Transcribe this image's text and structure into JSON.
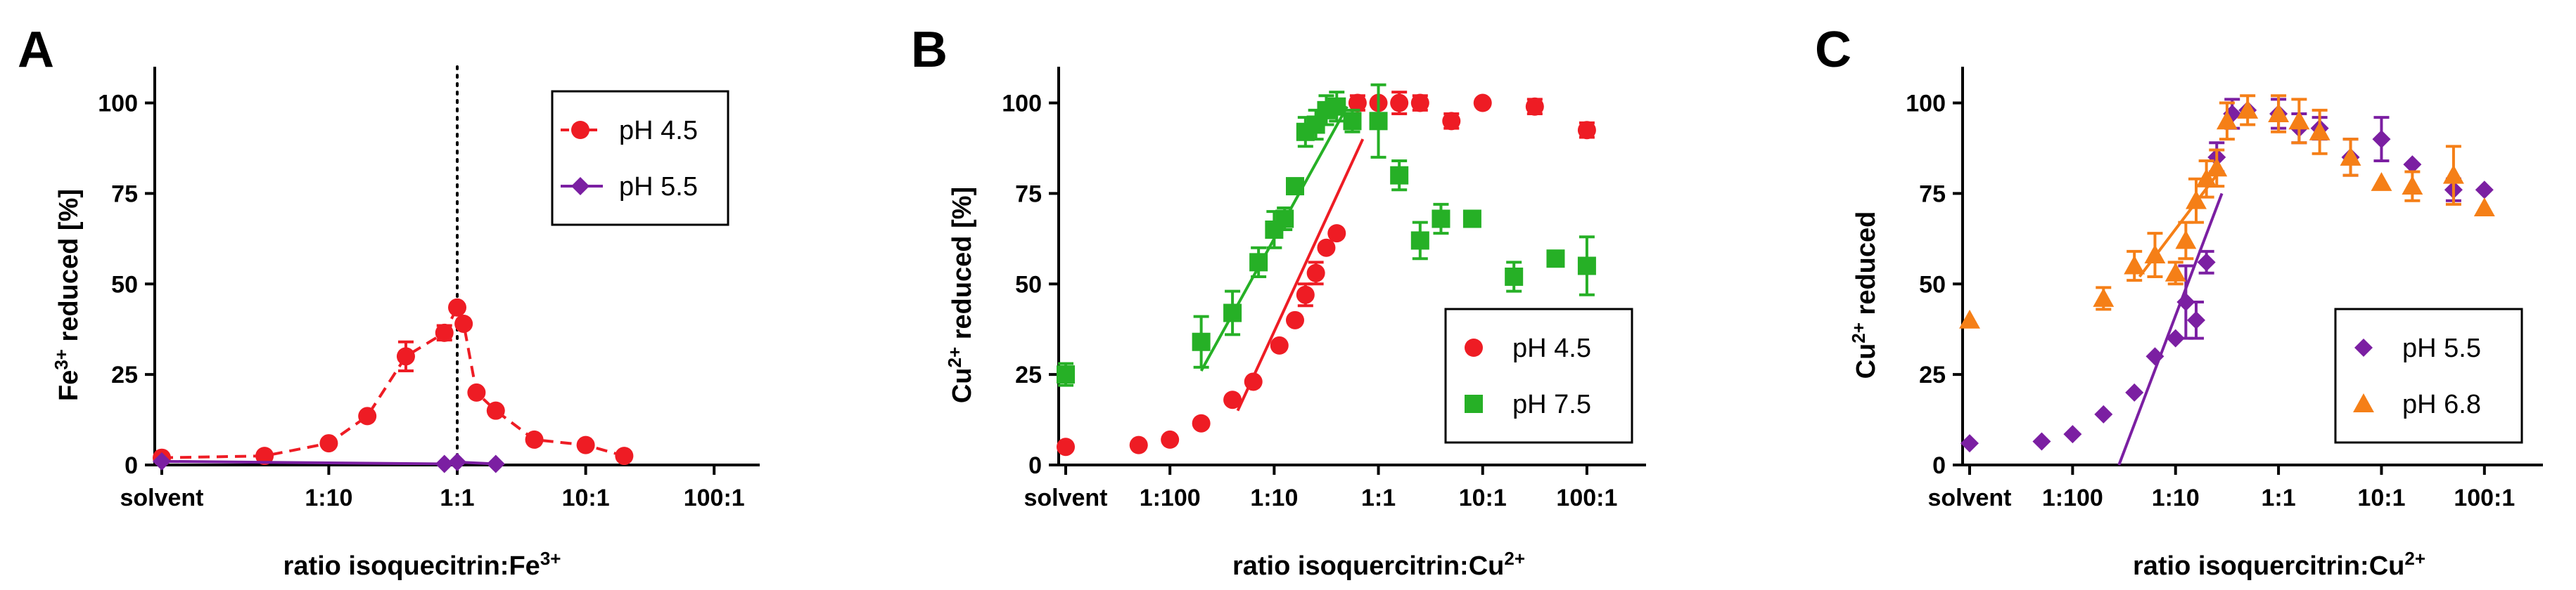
{
  "panels": [
    {
      "letter": "A",
      "xlabel_main": "ratio isoquecitrin:Fe",
      "xlabel_sup": "3+",
      "ylabel_pre": "Fe",
      "ylabel_sup": "3+",
      "ylabel_post": " reduced [%]"
    },
    {
      "letter": "B",
      "xlabel_main": "ratio isoquercitrin:Cu",
      "xlabel_sup": "2+",
      "ylabel_pre": "Cu",
      "ylabel_sup": "2+",
      "ylabel_post": " reduced [%]"
    },
    {
      "letter": "C",
      "xlabel_main": "ratio isoquercitrin:Cu",
      "xlabel_sup": "2+",
      "ylabel_pre": "Cu",
      "ylabel_sup": "2+",
      "ylabel_post": " reduced"
    }
  ],
  "chart_data": [
    {
      "type": "line",
      "x_scale": "log10",
      "x_ticks": [
        {
          "label": "solvent",
          "value": -2.3
        },
        {
          "label": "1:10",
          "value": -1
        },
        {
          "label": "1:1",
          "value": 0
        },
        {
          "label": "10:1",
          "value": 1
        },
        {
          "label": "100:1",
          "value": 2
        }
      ],
      "y_ticks": [
        0,
        25,
        50,
        75,
        100
      ],
      "ylim": [
        0,
        110
      ],
      "xlim": [
        -2.3,
        2.3
      ],
      "vertical_reference_line": {
        "x": 0,
        "style": "dotted"
      },
      "legend_position": "top-right",
      "series": [
        {
          "name": "pH 4.5",
          "color": "#ee1c24",
          "marker": "circle",
          "line": "dashed",
          "points": [
            {
              "x": -2.3,
              "y": 2
            },
            {
              "x": -1.5,
              "y": 2.5
            },
            {
              "x": -1.0,
              "y": 6
            },
            {
              "x": -0.7,
              "y": 13.5
            },
            {
              "x": -0.4,
              "y": 30,
              "err": 4
            },
            {
              "x": -0.1,
              "y": 36.5,
              "err": 2
            },
            {
              "x": 0.0,
              "y": 43.5
            },
            {
              "x": 0.05,
              "y": 39
            },
            {
              "x": 0.15,
              "y": 20
            },
            {
              "x": 0.3,
              "y": 15
            },
            {
              "x": 0.6,
              "y": 7
            },
            {
              "x": 1.0,
              "y": 5.5
            },
            {
              "x": 1.3,
              "y": 2.5
            }
          ]
        },
        {
          "name": "pH 5.5",
          "color": "#7b1fa2",
          "marker": "diamond",
          "line": "solid",
          "points": [
            {
              "x": -2.3,
              "y": 1
            },
            {
              "x": -0.1,
              "y": 0.3
            },
            {
              "x": 0.0,
              "y": 0.8
            },
            {
              "x": 0.3,
              "y": 0.3
            }
          ]
        }
      ]
    },
    {
      "type": "scatter",
      "x_scale": "log10",
      "x_ticks": [
        {
          "label": "solvent",
          "value": -3
        },
        {
          "label": "1:100",
          "value": -2
        },
        {
          "label": "1:10",
          "value": -1
        },
        {
          "label": "1:1",
          "value": 0
        },
        {
          "label": "10:1",
          "value": 1
        },
        {
          "label": "100:1",
          "value": 2
        }
      ],
      "y_ticks": [
        0,
        25,
        50,
        75,
        100
      ],
      "ylim": [
        0,
        110
      ],
      "xlim": [
        -3,
        2.5
      ],
      "legend_position": "bottom-right",
      "series": [
        {
          "name": "pH 4.5",
          "color": "#ee1c24",
          "marker": "circle",
          "points": [
            {
              "x": -3,
              "y": 5
            },
            {
              "x": -2.3,
              "y": 5.5
            },
            {
              "x": -2.0,
              "y": 7
            },
            {
              "x": -1.7,
              "y": 11.5
            },
            {
              "x": -1.4,
              "y": 18
            },
            {
              "x": -1.2,
              "y": 23
            },
            {
              "x": -0.95,
              "y": 33
            },
            {
              "x": -0.8,
              "y": 40
            },
            {
              "x": -0.7,
              "y": 47,
              "err": 3
            },
            {
              "x": -0.6,
              "y": 53,
              "err": 3
            },
            {
              "x": -0.5,
              "y": 60
            },
            {
              "x": -0.4,
              "y": 64
            },
            {
              "x": -0.2,
              "y": 100,
              "err": 2
            },
            {
              "x": 0.0,
              "y": 100
            },
            {
              "x": 0.2,
              "y": 100,
              "err": 3
            },
            {
              "x": 0.4,
              "y": 100,
              "err": 2
            },
            {
              "x": 0.7,
              "y": 95,
              "err": 2
            },
            {
              "x": 1.0,
              "y": 100
            },
            {
              "x": 1.5,
              "y": 99,
              "err": 2
            },
            {
              "x": 2.0,
              "y": 92.5,
              "err": 2
            }
          ],
          "fit_line": {
            "x1": -1.35,
            "y1": 15,
            "x2": -0.15,
            "y2": 90
          }
        },
        {
          "name": "pH 7.5",
          "color": "#26b026",
          "marker": "square",
          "points": [
            {
              "x": -3,
              "y": 25,
              "err": 3
            },
            {
              "x": -1.7,
              "y": 34,
              "err": 7
            },
            {
              "x": -1.4,
              "y": 42,
              "err": 6
            },
            {
              "x": -1.15,
              "y": 56,
              "err": 4
            },
            {
              "x": -1.0,
              "y": 65,
              "err": 5
            },
            {
              "x": -0.9,
              "y": 68,
              "err": 3
            },
            {
              "x": -0.8,
              "y": 77
            },
            {
              "x": -0.7,
              "y": 92,
              "err": 4
            },
            {
              "x": -0.6,
              "y": 94,
              "err": 4
            },
            {
              "x": -0.5,
              "y": 98,
              "err": 4
            },
            {
              "x": -0.4,
              "y": 99,
              "err": 4
            },
            {
              "x": -0.25,
              "y": 95,
              "err": 3
            },
            {
              "x": 0.0,
              "y": 95,
              "err": 10
            },
            {
              "x": 0.2,
              "y": 80,
              "err": 4
            },
            {
              "x": 0.4,
              "y": 62,
              "err": 5
            },
            {
              "x": 0.6,
              "y": 68,
              "err": 4
            },
            {
              "x": 0.9,
              "y": 68
            },
            {
              "x": 1.3,
              "y": 52,
              "err": 4
            },
            {
              "x": 1.7,
              "y": 57
            },
            {
              "x": 2.0,
              "y": 55,
              "err": 8
            }
          ],
          "fit_line": {
            "x1": -1.7,
            "y1": 26,
            "x2": -0.3,
            "y2": 99
          }
        }
      ]
    },
    {
      "type": "scatter",
      "x_scale": "log10",
      "x_ticks": [
        {
          "label": "solvent",
          "value": -3
        },
        {
          "label": "1:100",
          "value": -2
        },
        {
          "label": "1:10",
          "value": -1
        },
        {
          "label": "1:1",
          "value": 0
        },
        {
          "label": "10:1",
          "value": 1
        },
        {
          "label": "100:1",
          "value": 2
        }
      ],
      "y_ticks": [
        0,
        25,
        50,
        75,
        100
      ],
      "ylim": [
        0,
        110
      ],
      "xlim": [
        -3,
        2.5
      ],
      "legend_position": "bottom-right",
      "series": [
        {
          "name": "pH 5.5",
          "color": "#7b1fa2",
          "marker": "diamond",
          "points": [
            {
              "x": -3,
              "y": 6
            },
            {
              "x": -2.3,
              "y": 6.5
            },
            {
              "x": -2.0,
              "y": 8.5
            },
            {
              "x": -1.7,
              "y": 14
            },
            {
              "x": -1.4,
              "y": 20
            },
            {
              "x": -1.2,
              "y": 30
            },
            {
              "x": -1.0,
              "y": 35
            },
            {
              "x": -0.9,
              "y": 45,
              "err": 10
            },
            {
              "x": -0.8,
              "y": 40,
              "err": 5
            },
            {
              "x": -0.7,
              "y": 56,
              "err": 3
            },
            {
              "x": -0.6,
              "y": 85,
              "err": 4
            },
            {
              "x": -0.45,
              "y": 97,
              "err": 4
            },
            {
              "x": -0.3,
              "y": 98
            },
            {
              "x": 0.0,
              "y": 97,
              "err": 4
            },
            {
              "x": 0.2,
              "y": 93,
              "err": 4
            },
            {
              "x": 0.4,
              "y": 93,
              "err": 3
            },
            {
              "x": 0.7,
              "y": 85,
              "err": 5
            },
            {
              "x": 1.0,
              "y": 90,
              "err": 6
            },
            {
              "x": 1.3,
              "y": 83
            },
            {
              "x": 1.7,
              "y": 76,
              "err": 3
            },
            {
              "x": 2.0,
              "y": 76
            }
          ],
          "fit_line": {
            "x1": -1.55,
            "y1": 0,
            "x2": -0.55,
            "y2": 75
          }
        },
        {
          "name": "pH 6.8",
          "color": "#f57f17",
          "marker": "triangle",
          "points": [
            {
              "x": -3,
              "y": 40
            },
            {
              "x": -1.7,
              "y": 46,
              "err": 3
            },
            {
              "x": -1.4,
              "y": 55,
              "err": 4
            },
            {
              "x": -1.2,
              "y": 58,
              "err": 6
            },
            {
              "x": -1.0,
              "y": 53,
              "err": 3
            },
            {
              "x": -0.9,
              "y": 62,
              "err": 5
            },
            {
              "x": -0.8,
              "y": 73,
              "err": 6
            },
            {
              "x": -0.7,
              "y": 79,
              "err": 5
            },
            {
              "x": -0.6,
              "y": 82,
              "err": 5
            },
            {
              "x": -0.5,
              "y": 95,
              "err": 5
            },
            {
              "x": -0.3,
              "y": 98,
              "err": 4
            },
            {
              "x": 0.0,
              "y": 97,
              "err": 5
            },
            {
              "x": 0.2,
              "y": 95,
              "err": 6
            },
            {
              "x": 0.4,
              "y": 92,
              "err": 6
            },
            {
              "x": 0.7,
              "y": 85,
              "err": 5
            },
            {
              "x": 1.0,
              "y": 78
            },
            {
              "x": 1.3,
              "y": 77,
              "err": 4
            },
            {
              "x": 1.7,
              "y": 80,
              "err": 8
            },
            {
              "x": 2.0,
              "y": 71
            }
          ],
          "fit_line": {
            "x1": -1.35,
            "y1": 52,
            "x2": -0.55,
            "y2": 82
          }
        }
      ]
    }
  ]
}
